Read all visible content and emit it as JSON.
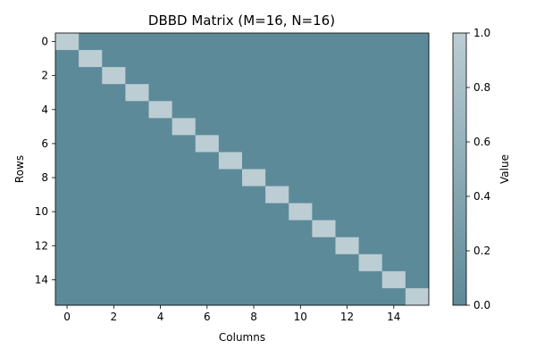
{
  "chart_data": {
    "type": "heatmap",
    "title": "DBBD Matrix (M=16, N=16)",
    "xlabel": "Columns",
    "ylabel": "Rows",
    "rows": 16,
    "cols": 16,
    "values": [
      [
        1,
        0,
        0,
        0,
        0,
        0,
        0,
        0,
        0,
        0,
        0,
        0,
        0,
        0,
        0,
        0
      ],
      [
        0,
        1,
        0,
        0,
        0,
        0,
        0,
        0,
        0,
        0,
        0,
        0,
        0,
        0,
        0,
        0
      ],
      [
        0,
        0,
        1,
        0,
        0,
        0,
        0,
        0,
        0,
        0,
        0,
        0,
        0,
        0,
        0,
        0
      ],
      [
        0,
        0,
        0,
        1,
        0,
        0,
        0,
        0,
        0,
        0,
        0,
        0,
        0,
        0,
        0,
        0
      ],
      [
        0,
        0,
        0,
        0,
        1,
        0,
        0,
        0,
        0,
        0,
        0,
        0,
        0,
        0,
        0,
        0
      ],
      [
        0,
        0,
        0,
        0,
        0,
        1,
        0,
        0,
        0,
        0,
        0,
        0,
        0,
        0,
        0,
        0
      ],
      [
        0,
        0,
        0,
        0,
        0,
        0,
        1,
        0,
        0,
        0,
        0,
        0,
        0,
        0,
        0,
        0
      ],
      [
        0,
        0,
        0,
        0,
        0,
        0,
        0,
        1,
        0,
        0,
        0,
        0,
        0,
        0,
        0,
        0
      ],
      [
        0,
        0,
        0,
        0,
        0,
        0,
        0,
        0,
        1,
        0,
        0,
        0,
        0,
        0,
        0,
        0
      ],
      [
        0,
        0,
        0,
        0,
        0,
        0,
        0,
        0,
        0,
        1,
        0,
        0,
        0,
        0,
        0,
        0
      ],
      [
        0,
        0,
        0,
        0,
        0,
        0,
        0,
        0,
        0,
        0,
        1,
        0,
        0,
        0,
        0,
        0
      ],
      [
        0,
        0,
        0,
        0,
        0,
        0,
        0,
        0,
        0,
        0,
        0,
        1,
        0,
        0,
        0,
        0
      ],
      [
        0,
        0,
        0,
        0,
        0,
        0,
        0,
        0,
        0,
        0,
        0,
        0,
        1,
        0,
        0,
        0
      ],
      [
        0,
        0,
        0,
        0,
        0,
        0,
        0,
        0,
        0,
        0,
        0,
        0,
        0,
        1,
        0,
        0
      ],
      [
        0,
        0,
        0,
        0,
        0,
        0,
        0,
        0,
        0,
        0,
        0,
        0,
        0,
        0,
        1,
        0
      ],
      [
        0,
        0,
        0,
        0,
        0,
        0,
        0,
        0,
        0,
        0,
        0,
        0,
        0,
        0,
        0,
        1
      ]
    ],
    "x_ticks": [
      0,
      2,
      4,
      6,
      8,
      10,
      12,
      14
    ],
    "y_ticks": [
      0,
      2,
      4,
      6,
      8,
      10,
      12,
      14
    ],
    "colorbar": {
      "label": "Value",
      "range": [
        0.0,
        1.0
      ],
      "ticks": [
        "0.0",
        "0.2",
        "0.4",
        "0.6",
        "0.8",
        "1.0"
      ],
      "low_color": "#5d8a99",
      "high_color": "#bccdd4"
    },
    "grid": false,
    "legend": "none"
  }
}
